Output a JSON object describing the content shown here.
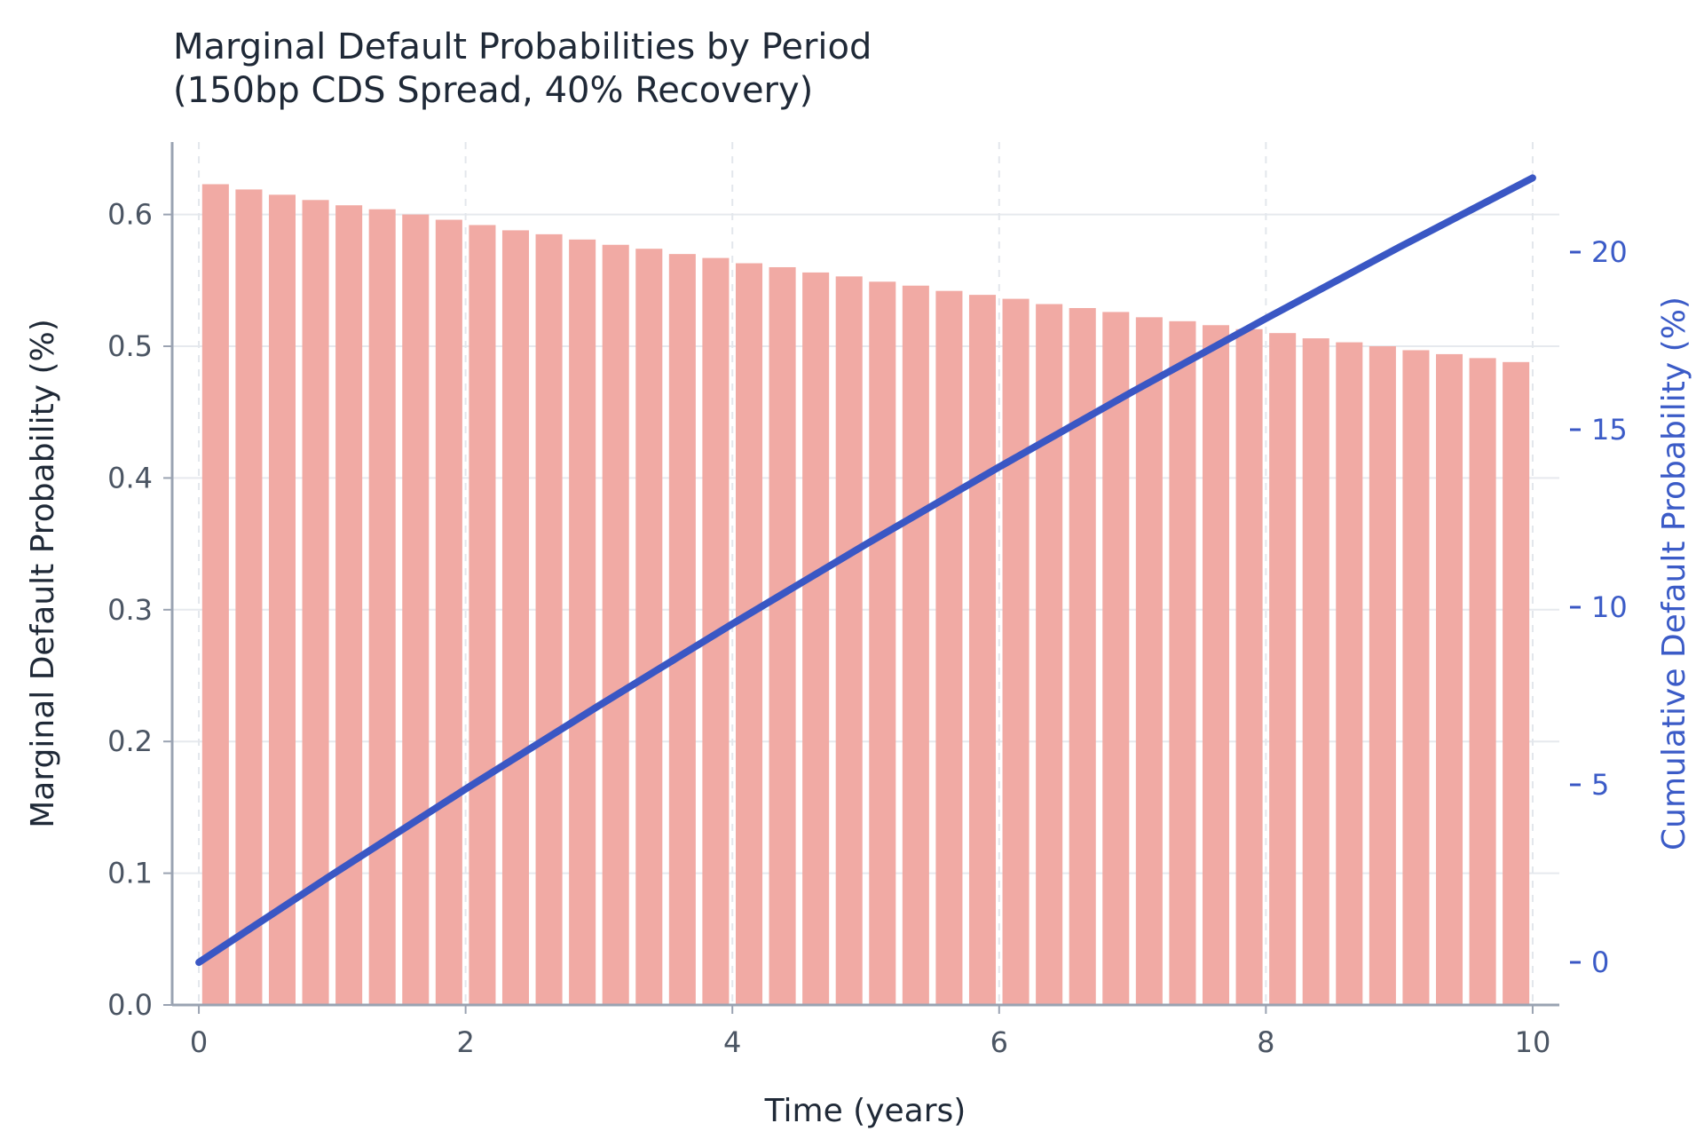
{
  "chart_data": {
    "type": "bar",
    "title_line1": "Marginal Default Probabilities by Period",
    "title_line2": "(150bp CDS Spread, 40% Recovery)",
    "xlabel": "Time (years)",
    "ylabel": "Marginal Default Probability (%)",
    "y2label": "Cumulative Default Probability (%)",
    "xlim": [
      -0.2,
      10.2
    ],
    "ylim": [
      0,
      0.655
    ],
    "y2lim": [
      -1.2,
      23.1
    ],
    "xticks": [
      0,
      2,
      4,
      6,
      8,
      10
    ],
    "yticks": [
      0.0,
      0.1,
      0.2,
      0.3,
      0.4,
      0.5,
      0.6
    ],
    "ytick_labels": [
      "0.0",
      "0.1",
      "0.2",
      "0.3",
      "0.4",
      "0.5",
      "0.6"
    ],
    "y2ticks": [
      0,
      5,
      10,
      15,
      20
    ],
    "grid": true,
    "bar_color": "#f1aaa4",
    "line_color": "#3a57c4",
    "bars": {
      "x": [
        0.25,
        0.5,
        0.75,
        1.0,
        1.25,
        1.5,
        1.75,
        2.0,
        2.25,
        2.5,
        2.75,
        3.0,
        3.25,
        3.5,
        3.75,
        4.0,
        4.25,
        4.5,
        4.75,
        5.0,
        5.25,
        5.5,
        5.75,
        6.0,
        6.25,
        6.5,
        6.75,
        7.0,
        7.25,
        7.5,
        7.75,
        8.0,
        8.25,
        8.5,
        8.75,
        9.0,
        9.25,
        9.5,
        9.75,
        10.0
      ],
      "values": [
        0.623,
        0.619,
        0.615,
        0.611,
        0.607,
        0.604,
        0.6,
        0.596,
        0.592,
        0.588,
        0.585,
        0.581,
        0.577,
        0.574,
        0.57,
        0.567,
        0.563,
        0.56,
        0.556,
        0.553,
        0.549,
        0.546,
        0.542,
        0.539,
        0.536,
        0.532,
        0.529,
        0.526,
        0.522,
        0.519,
        0.516,
        0.513,
        0.51,
        0.506,
        0.503,
        0.5,
        0.497,
        0.494,
        0.491,
        0.488
      ]
    },
    "line": {
      "x": [
        0,
        1,
        2,
        3,
        4,
        5,
        6,
        7,
        8,
        9,
        10
      ],
      "values": [
        0,
        2.47,
        4.88,
        7.23,
        9.53,
        11.77,
        13.95,
        16.07,
        18.13,
        20.14,
        22.09
      ]
    }
  }
}
